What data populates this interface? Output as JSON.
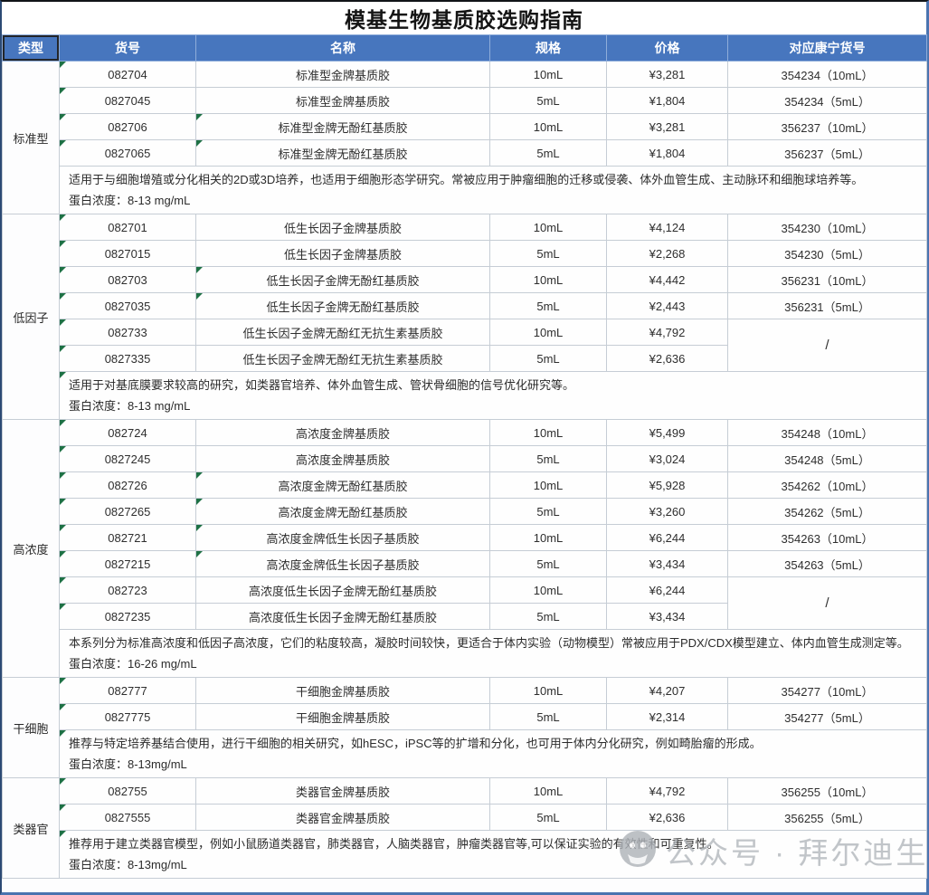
{
  "title": "模基生物基质胶选购指南",
  "columns": [
    "类型",
    "货号",
    "名称",
    "规格",
    "价格",
    "对应康宁货号"
  ],
  "accent_colors": {
    "header_blue": "#4776be",
    "grid_line": "#c6cdd5",
    "error_triangle_green": "#1e7145",
    "sheet_edge_blue": "#4a74b0",
    "watermark_gray": "#b3b7bc"
  },
  "sections": [
    {
      "type": "标准型",
      "rows": [
        {
          "sku": "082704",
          "name": "标准型金牌基质胶",
          "spec": "10mL",
          "price": "¥3,281",
          "corning": "354234（10mL）",
          "marks": [
            "sku"
          ]
        },
        {
          "sku": "0827045",
          "name": "标准型金牌基质胶",
          "spec": "5mL",
          "price": "¥1,804",
          "corning": "354234（5mL）",
          "marks": [
            "sku"
          ]
        },
        {
          "sku": "082706",
          "name": "标准型金牌无酚红基质胶",
          "spec": "10mL",
          "price": "¥3,281",
          "corning": "356237（10mL）",
          "marks": [
            "sku",
            "name"
          ]
        },
        {
          "sku": "0827065",
          "name": "标准型金牌无酚红基质胶",
          "spec": "5mL",
          "price": "¥1,804",
          "corning": "356237（5mL）",
          "marks": [
            "sku",
            "name"
          ]
        }
      ],
      "desc": "适用于与细胞增殖或分化相关的2D或3D培养，也适用于细胞形态学研究。常被应用于肿瘤细胞的迁移或侵袭、体外血管生成、主动脉环和细胞球培养等。",
      "protein": "蛋白浓度：8-13 mg/mL",
      "desc_mark": false
    },
    {
      "type": "低因子",
      "rows": [
        {
          "sku": "082701",
          "name": "低生长因子金牌基质胶",
          "spec": "10mL",
          "price": "¥4,124",
          "corning": "354230（10mL）",
          "marks": [
            "sku"
          ]
        },
        {
          "sku": "0827015",
          "name": "低生长因子金牌基质胶",
          "spec": "5mL",
          "price": "¥2,268",
          "corning": "354230（5mL）",
          "marks": [
            "sku"
          ]
        },
        {
          "sku": "082703",
          "name": "低生长因子金牌无酚红基质胶",
          "spec": "10mL",
          "price": "¥4,442",
          "corning": "356231（10mL）",
          "marks": [
            "sku",
            "name"
          ]
        },
        {
          "sku": "0827035",
          "name": "低生长因子金牌无酚红基质胶",
          "spec": "5mL",
          "price": "¥2,443",
          "corning": "356231（5mL）",
          "marks": [
            "sku",
            "name"
          ]
        },
        {
          "sku": "082733",
          "name": "低生长因子金牌无酚红无抗生素基质胶",
          "spec": "10mL",
          "price": "¥4,792",
          "corning": "/",
          "corning_span": 2,
          "marks": [
            "sku"
          ]
        },
        {
          "sku": "0827335",
          "name": "低生长因子金牌无酚红无抗生素基质胶",
          "spec": "5mL",
          "price": "¥2,636",
          "corning": null,
          "marks": [
            "sku"
          ]
        }
      ],
      "desc": "适用于对基底膜要求较高的研究，如类器官培养、体外血管生成、管状骨细胞的信号优化研究等。",
      "protein": "蛋白浓度：8-13 mg/mL",
      "desc_mark": true
    },
    {
      "type": "高浓度",
      "rows": [
        {
          "sku": "082724",
          "name": "高浓度金牌基质胶",
          "spec": "10mL",
          "price": "¥5,499",
          "corning": "354248（10mL）",
          "marks": [
            "sku"
          ]
        },
        {
          "sku": "0827245",
          "name": "高浓度金牌基质胶",
          "spec": "5mL",
          "price": "¥3,024",
          "corning": "354248（5mL）",
          "marks": [
            "sku"
          ]
        },
        {
          "sku": "082726",
          "name": "高浓度金牌无酚红基质胶",
          "spec": "10mL",
          "price": "¥5,928",
          "corning": "354262（10mL）",
          "marks": [
            "sku",
            "name"
          ]
        },
        {
          "sku": "0827265",
          "name": "高浓度金牌无酚红基质胶",
          "spec": "5mL",
          "price": "¥3,260",
          "corning": "354262（5mL）",
          "marks": [
            "sku",
            "name"
          ]
        },
        {
          "sku": "082721",
          "name": "高浓度金牌低生长因子基质胶",
          "spec": "10mL",
          "price": "¥6,244",
          "corning": "354263（10mL）",
          "marks": [
            "sku",
            "name"
          ]
        },
        {
          "sku": "0827215",
          "name": "高浓度金牌低生长因子基质胶",
          "spec": "5mL",
          "price": "¥3,434",
          "corning": "354263（5mL）",
          "marks": [
            "sku",
            "name"
          ]
        },
        {
          "sku": "082723",
          "name": "高浓度低生长因子金牌无酚红基质胶",
          "spec": "10mL",
          "price": "¥6,244",
          "corning": "/",
          "corning_span": 2,
          "marks": [
            "sku"
          ]
        },
        {
          "sku": "0827235",
          "name": "高浓度低生长因子金牌无酚红基质胶",
          "spec": "5mL",
          "price": "¥3,434",
          "corning": null,
          "marks": [
            "sku"
          ]
        }
      ],
      "desc": "本系列分为标准高浓度和低因子高浓度，它们的粘度较高，凝胶时间较快，更适合于体内实验（动物模型）常被应用于PDX/CDX模型建立、体内血管生成测定等。",
      "protein": "蛋白浓度：16-26 mg/mL",
      "desc_mark": false
    },
    {
      "type": "干细胞",
      "rows": [
        {
          "sku": "082777",
          "name": "干细胞金牌基质胶",
          "spec": "10mL",
          "price": "¥4,207",
          "corning": "354277（10mL）",
          "marks": [
            "sku"
          ]
        },
        {
          "sku": "0827775",
          "name": "干细胞金牌基质胶",
          "spec": "5mL",
          "price": "¥2,314",
          "corning": "354277（5mL）",
          "marks": [
            "sku"
          ]
        }
      ],
      "desc": "推荐与特定培养基结合使用，进行干细胞的相关研究，如hESC，iPSC等的扩增和分化，也可用于体内分化研究，例如畸胎瘤的形成。",
      "protein": "蛋白浓度：8-13mg/mL",
      "desc_mark": true
    },
    {
      "type": "类器官",
      "rows": [
        {
          "sku": "082755",
          "name": "类器官金牌基质胶",
          "spec": "10mL",
          "price": "¥4,792",
          "corning": "356255（10mL）",
          "marks": [
            "sku"
          ]
        },
        {
          "sku": "0827555",
          "name": "类器官金牌基质胶",
          "spec": "5mL",
          "price": "¥2,636",
          "corning": "356255（5mL）",
          "marks": [
            "sku"
          ]
        }
      ],
      "desc": "推荐用于建立类器官模型，例如小鼠肠道类器官，肺类器官，人脑类器官，肿瘤类器官等,可以保证实验的有效性和可重复性。",
      "protein": "蛋白浓度：8-13mg/mL",
      "desc_mark": true
    }
  ],
  "watermark": {
    "icon": "wechat-official-account-icon",
    "text": "公众号 · 拜尔迪生物"
  }
}
